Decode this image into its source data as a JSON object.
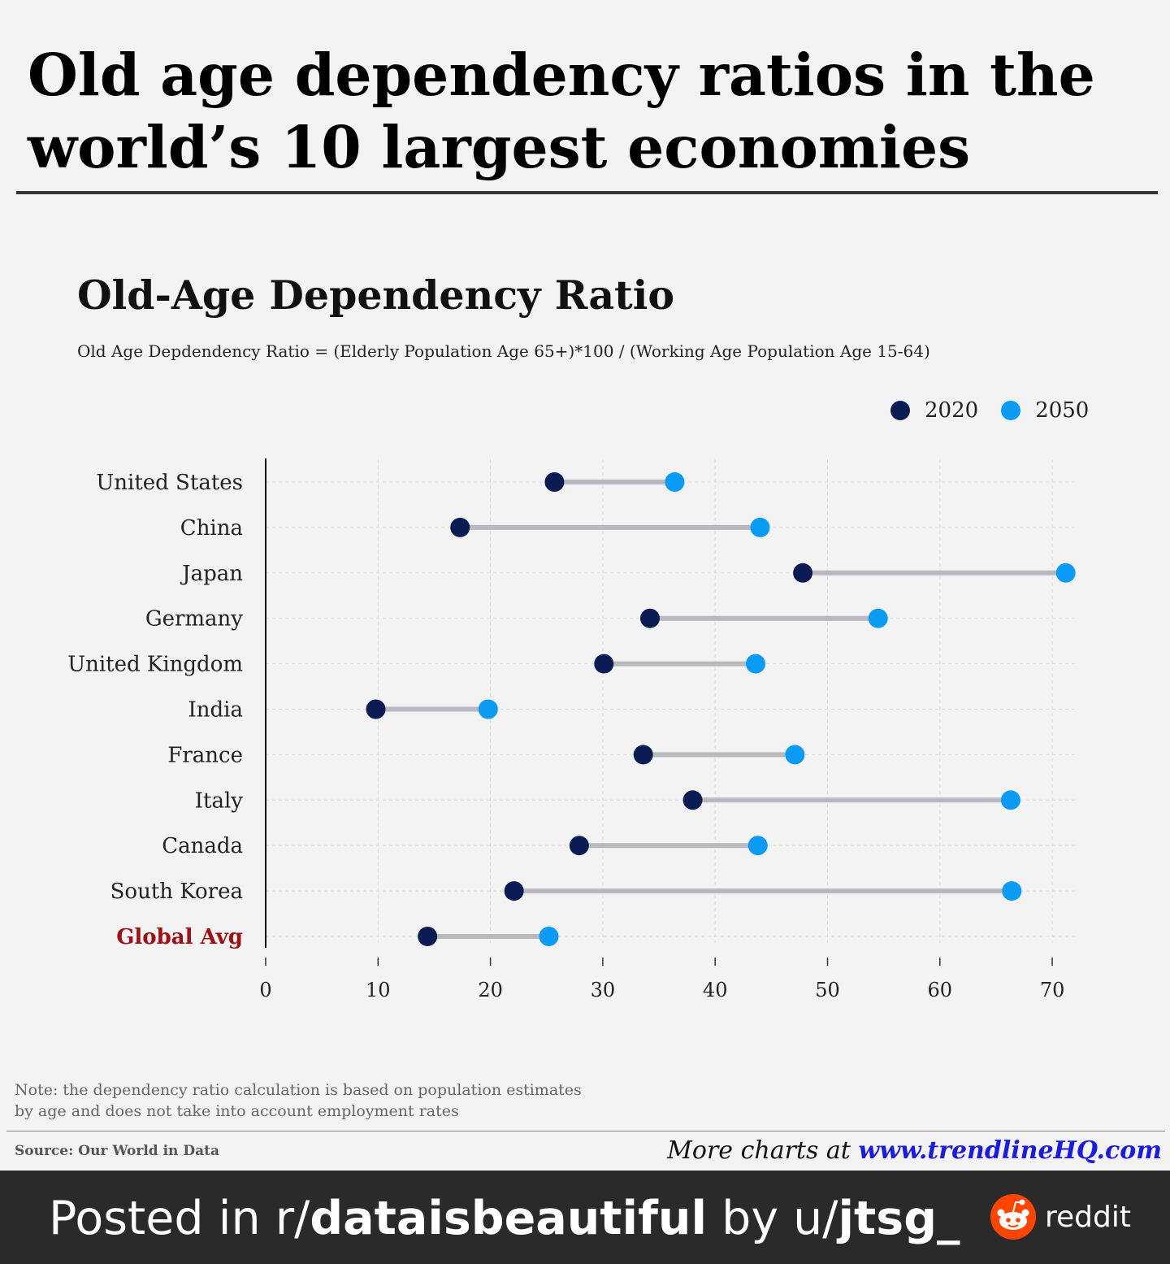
{
  "headline": [
    "Old age dependency ratios in the",
    "world’s 10 largest economies"
  ],
  "chart_title": "Old-Age Dependency Ratio",
  "formula": "Old Age Depdendency Ratio = (Elderly Population Age 65+)*100 / (Working Age Population Age 15-64)",
  "colors": {
    "series_2020": "#0b1c54",
    "series_2050": "#0a9cf5",
    "connector": "#b8b8c0",
    "highlight_label": "#a10f12",
    "link": "#1a1ae6"
  },
  "chart_data": {
    "type": "dumbbell",
    "title": "Old-Age Dependency Ratio",
    "subtitle": "Old Age Depdendency Ratio = (Elderly Population Age 65+)*100 / (Working Age Population Age 15-64)",
    "categories": [
      "United States",
      "China",
      "Japan",
      "Germany",
      "United Kingdom",
      "India",
      "France",
      "Italy",
      "Canada",
      "South Korea",
      "Global Avg"
    ],
    "highlight_category": "Global Avg",
    "series": [
      {
        "name": "2020",
        "values": [
          25.7,
          17.3,
          47.8,
          34.2,
          30.1,
          9.8,
          33.6,
          38.0,
          27.9,
          22.1,
          14.4
        ]
      },
      {
        "name": "2050",
        "values": [
          36.4,
          44.0,
          71.2,
          54.5,
          43.6,
          19.8,
          47.1,
          66.3,
          43.8,
          66.4,
          25.2
        ]
      }
    ],
    "xlim": [
      0,
      72
    ],
    "xticks": [
      0,
      10,
      20,
      30,
      40,
      50,
      60,
      70
    ],
    "grid": true,
    "legend_position": "top-right"
  },
  "note": "Note: the dependency ratio calculation is based on population estimates by age and does not take into account employment rates",
  "source": "Source: Our World in Data",
  "more_prefix": "More charts at ",
  "more_link": "www.trendlineHQ.com",
  "footer": {
    "prefix": "Posted in r/",
    "subreddit": "dataisbeautiful",
    "by": " by u/",
    "user": "jtsg_",
    "brand": "reddit"
  }
}
